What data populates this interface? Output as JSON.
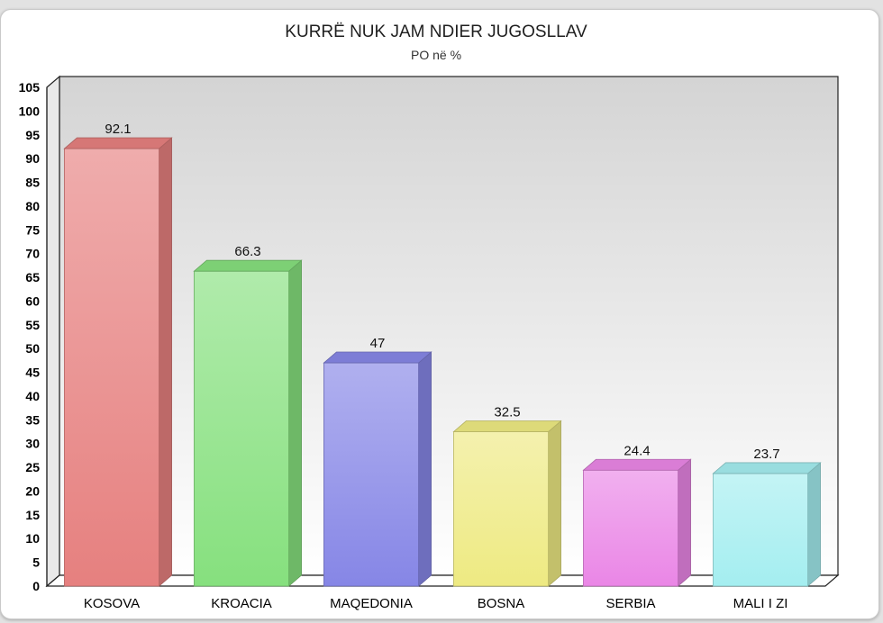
{
  "chart_data": {
    "type": "bar",
    "title": "KURRË NUK JAM NDIER JUGOSLLAV",
    "subtitle": "PO në %",
    "categories": [
      "KOSOVA",
      "KROACIA",
      "MAQEDONIA",
      "BOSNA",
      "SERBIA",
      "MALI I ZI"
    ],
    "values": [
      92.1,
      66.3,
      47,
      32.5,
      24.4,
      23.7
    ],
    "value_labels": [
      "92.1",
      "66.3",
      "47",
      "32.5",
      "24.4",
      "23.7"
    ],
    "colors": [
      "#e6807f",
      "#86e07e",
      "#8686e6",
      "#eeea82",
      "#ea86e6",
      "#a4eef0"
    ],
    "ylim": [
      0,
      105
    ],
    "ytick_step": 5,
    "grid": false,
    "legend": "none",
    "three_d": true
  }
}
